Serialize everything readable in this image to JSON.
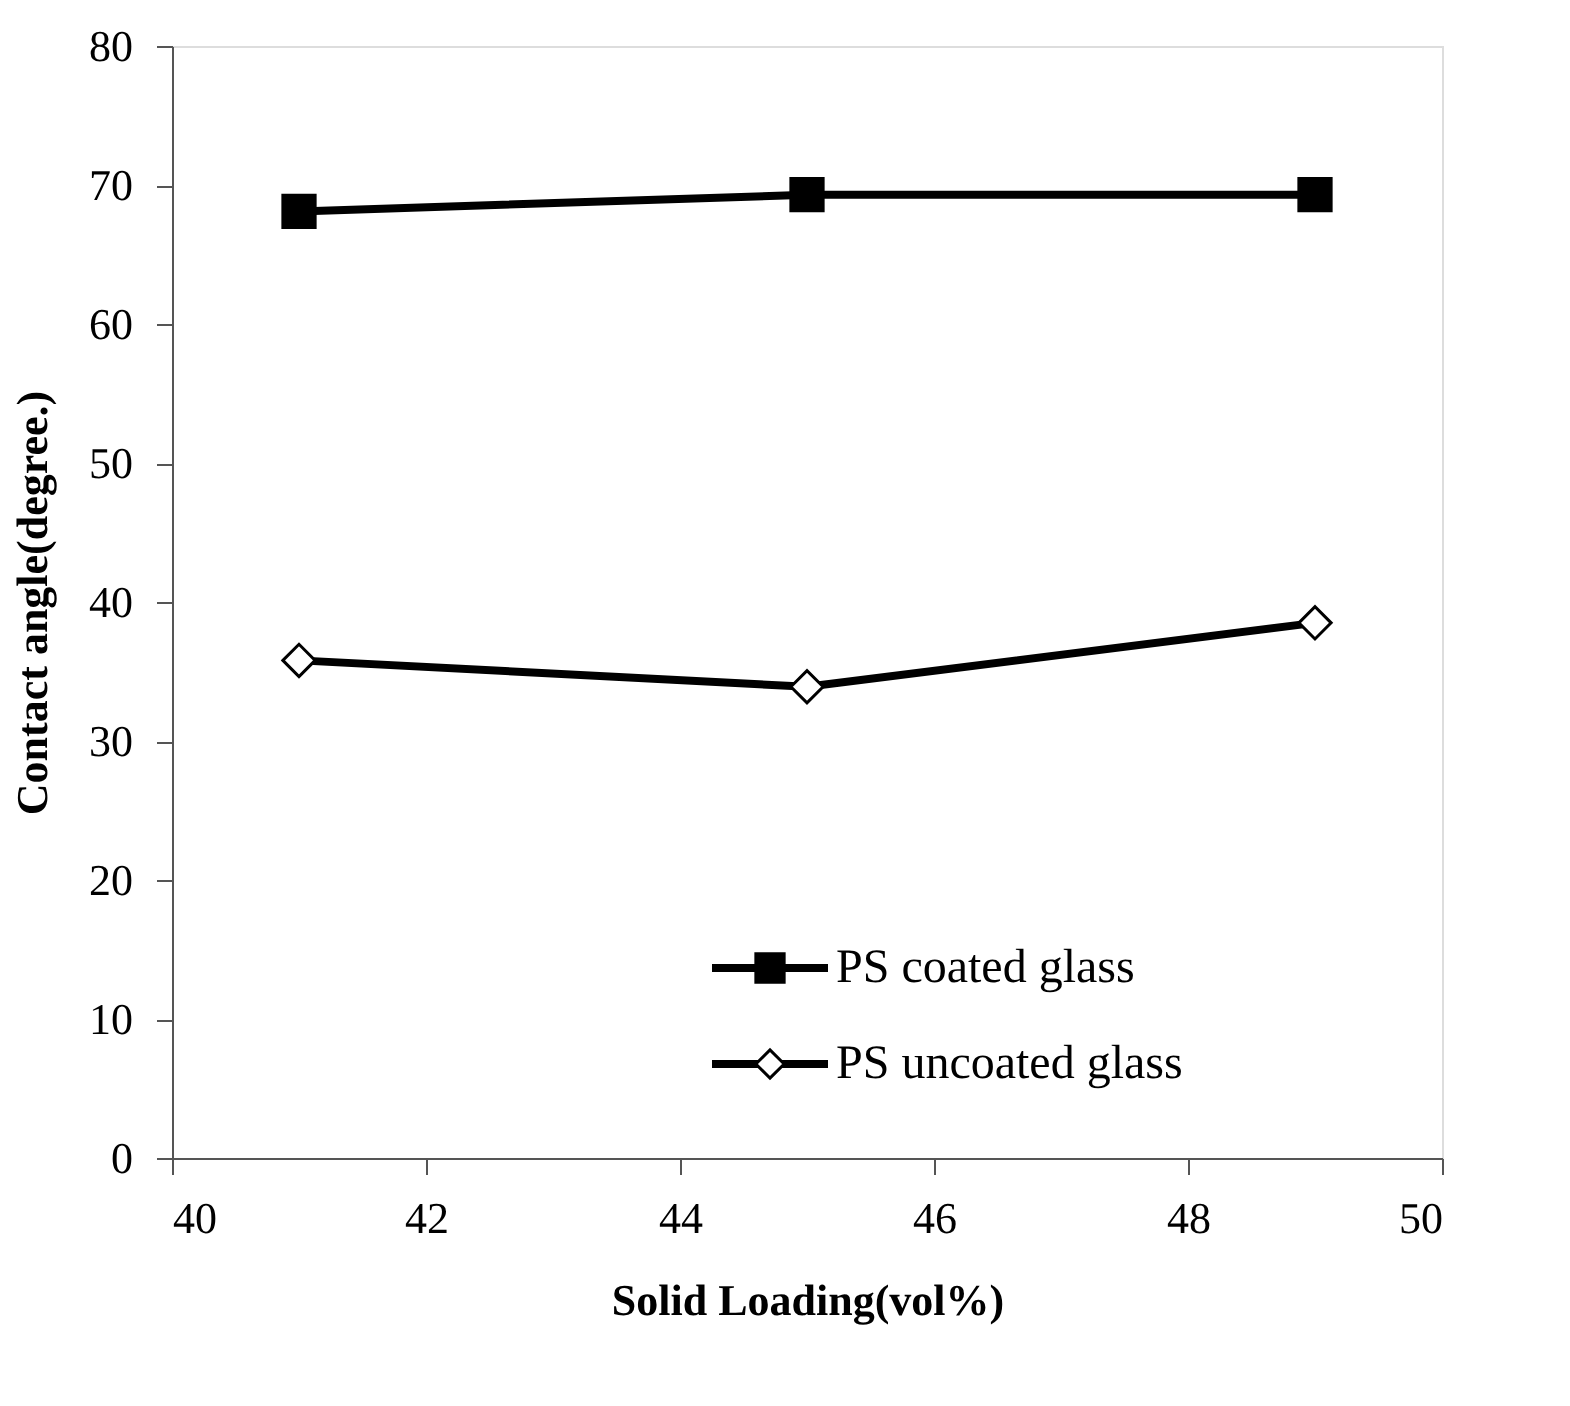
{
  "chart_data": {
    "type": "line",
    "xlabel": "Solid Loading(vol%)",
    "ylabel": "Contact angle(degree.)",
    "x": [
      41,
      45,
      49
    ],
    "series": [
      {
        "name": "PS coated glass",
        "color": "#000000",
        "marker": "square",
        "values": [
          68.1,
          69.3,
          69.3
        ]
      },
      {
        "name": "PS uncoated glass",
        "color": "#000000",
        "marker": "diamond",
        "values": [
          35.8,
          33.9,
          38.5
        ]
      }
    ],
    "xlim": [
      40,
      50
    ],
    "xticks": [
      40,
      42,
      44,
      46,
      48,
      50
    ],
    "ylim": [
      0,
      80
    ],
    "yticks": [
      0,
      10,
      20,
      30,
      40,
      50,
      60,
      70,
      80
    ],
    "grid": false,
    "legend": "bottom right",
    "line_style": "solid"
  }
}
